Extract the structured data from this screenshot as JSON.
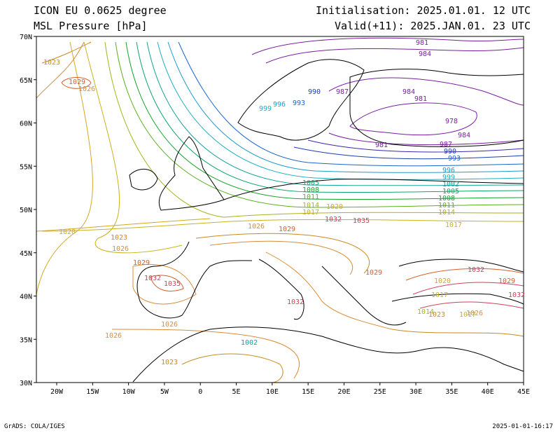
{
  "header": {
    "model": "ICON EU 0.0625 degree",
    "field": "MSL Pressure [hPa]",
    "init": "Initialisation: 2025.01.01. 12 UTC",
    "valid": "Valid(+11): 2025.JAN.01. 23 UTC"
  },
  "footer": {
    "left": "GrADS: COLA/IGES",
    "right": "2025-01-01-16:17"
  },
  "axes": {
    "lat_labels": [
      "70N",
      "65N",
      "60N",
      "55N",
      "50N",
      "45N",
      "40N",
      "35N",
      "30N"
    ],
    "lon_labels": [
      "20W",
      "15W",
      "10W",
      "5W",
      "0",
      "5E",
      "10E",
      "15E",
      "20E",
      "25E",
      "30E",
      "35E",
      "40E",
      "45E"
    ]
  },
  "contour_labels": [
    {
      "t": "1023",
      "c": "#c98a1e"
    },
    {
      "t": "1029",
      "c": "#d2602a"
    },
    {
      "t": "1026",
      "c": "#d98c3a"
    },
    {
      "t": "984",
      "c": "#7a1fa0"
    },
    {
      "t": "981",
      "c": "#7a1fa0"
    },
    {
      "t": "987",
      "c": "#7a1fa0"
    },
    {
      "t": "990",
      "c": "#1d3fb0"
    },
    {
      "t": "993",
      "c": "#1d66c8"
    },
    {
      "t": "996",
      "c": "#1a9ccc"
    },
    {
      "t": "999",
      "c": "#1ab0c0"
    },
    {
      "t": "984",
      "c": "#7a1fa0"
    },
    {
      "t": "981",
      "c": "#7a1fa0"
    },
    {
      "t": "978",
      "c": "#7a1fa0"
    },
    {
      "t": "984",
      "c": "#7a1fa0"
    },
    {
      "t": "981",
      "c": "#7a1fa0"
    },
    {
      "t": "987",
      "c": "#7a1fa0"
    },
    {
      "t": "990",
      "c": "#1d3fb0"
    },
    {
      "t": "993",
      "c": "#1d66c8"
    },
    {
      "t": "996",
      "c": "#1a9ccc"
    },
    {
      "t": "999",
      "c": "#1ab0c0"
    },
    {
      "t": "1002",
      "c": "#12a39a"
    },
    {
      "t": "1005",
      "c": "#0da66a"
    },
    {
      "t": "1008",
      "c": "#16a32a"
    },
    {
      "t": "1011",
      "c": "#5cb01e"
    },
    {
      "t": "1014",
      "c": "#a8b51a"
    },
    {
      "t": "1017",
      "c": "#c9b21c"
    },
    {
      "t": "1020",
      "c": "#d4a820"
    },
    {
      "t": "1023",
      "c": "#c98a1e"
    },
    {
      "t": "1026",
      "c": "#d98c3a"
    },
    {
      "t": "1029",
      "c": "#d2602a"
    },
    {
      "t": "1032",
      "c": "#d0405a"
    },
    {
      "t": "1035",
      "c": "#d0405a"
    },
    {
      "t": "1032",
      "c": "#d0405a"
    },
    {
      "t": "1020",
      "c": "#d4a820"
    },
    {
      "t": "1017",
      "c": "#c9b21c"
    },
    {
      "t": "1014",
      "c": "#a8b51a"
    },
    {
      "t": "1017",
      "c": "#c9b21c"
    },
    {
      "t": "1023",
      "c": "#c98a1e"
    },
    {
      "t": "1026",
      "c": "#d98c3a"
    },
    {
      "t": "1029",
      "c": "#d2602a"
    },
    {
      "t": "1032",
      "c": "#d0405a"
    },
    {
      "t": "1026",
      "c": "#d98c3a"
    },
    {
      "t": "1023",
      "c": "#c98a1e"
    },
    {
      "t": "1002",
      "c": "#12a39a"
    },
    {
      "t": "1005",
      "c": "#0da66a"
    },
    {
      "t": "1008",
      "c": "#16a32a"
    },
    {
      "t": "1011",
      "c": "#5cb01e"
    },
    {
      "t": "1014",
      "c": "#a8b51a"
    },
    {
      "t": "1017",
      "c": "#c9b21c"
    },
    {
      "t": "1020",
      "c": "#d4a820"
    },
    {
      "t": "1026",
      "c": "#d98c3a"
    },
    {
      "t": "1029",
      "c": "#d2602a"
    },
    {
      "t": "1032",
      "c": "#d0405a"
    },
    {
      "t": "1035",
      "c": "#d0405a"
    },
    {
      "t": "1032",
      "c": "#d0405a"
    },
    {
      "t": "1029",
      "c": "#d2602a"
    },
    {
      "t": "1026",
      "c": "#d98c3a"
    }
  ]
}
